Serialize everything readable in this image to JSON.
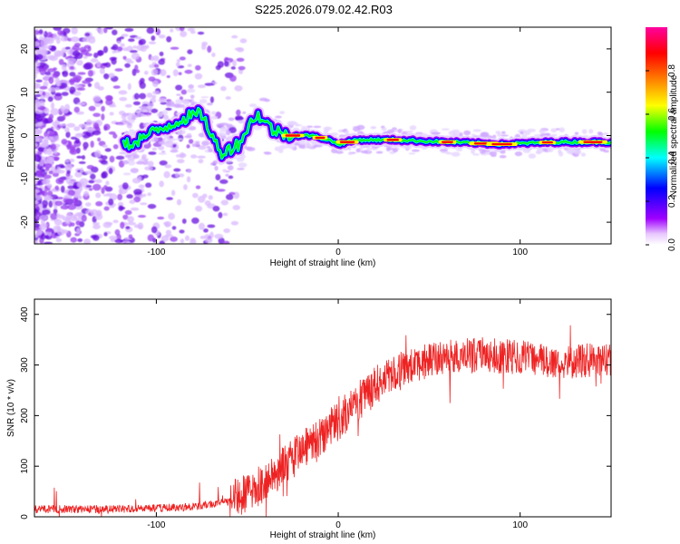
{
  "title": "S225.2026.079.02.42.R03",
  "chart_data": [
    {
      "type": "heatmap",
      "name": "spectrogram",
      "xlabel": "Height of straight line (km)",
      "ylabel": "Frequency (Hz)",
      "xlim": [
        -167,
        150
      ],
      "ylim": [
        -25,
        25
      ],
      "xticks": [
        -100,
        0,
        100
      ],
      "yticks": [
        -20,
        -10,
        0,
        10,
        20
      ],
      "colorbar": {
        "label": "Normalized spectral amplitude",
        "range": [
          0,
          1
        ],
        "ticks": [
          "0.0",
          "0.2",
          "0.4",
          "0.6",
          "0.8"
        ],
        "colors": [
          "#ffffff",
          "#a000ff",
          "#0000ff",
          "#00ffff",
          "#00ff00",
          "#ffff00",
          "#ff8000",
          "#ff0000",
          "#ff00a0"
        ]
      },
      "ridge": {
        "x": [
          -115,
          -105,
          -95,
          -85,
          -75,
          -65,
          -55,
          -45,
          -35,
          -25,
          -15,
          -5,
          0,
          10,
          30,
          60,
          90,
          120,
          150
        ],
        "y": [
          -2,
          0,
          2,
          4,
          5,
          -4,
          -2,
          5,
          1,
          0,
          0,
          -1,
          -2,
          -1,
          -1,
          -1.5,
          -2,
          -1.5,
          -1.5
        ],
        "peak_x": [
          -25,
          -10,
          5,
          30,
          60,
          80,
          90,
          115,
          140
        ]
      }
    },
    {
      "type": "line",
      "name": "snr",
      "xlabel": "Height of straight line (km)",
      "ylabel": "SNR (10 * v/v)",
      "xlim": [
        -167,
        150
      ],
      "ylim": [
        0,
        430
      ],
      "xticks": [
        -100,
        0,
        100
      ],
      "yticks": [
        0,
        100,
        200,
        300,
        400
      ],
      "color": "#ee2222",
      "trend": {
        "x": [
          -167,
          -120,
          -80,
          -60,
          -50,
          -40,
          -30,
          -20,
          -10,
          0,
          10,
          20,
          30,
          40,
          60,
          80,
          100,
          120,
          150
        ],
        "y": [
          15,
          15,
          20,
          30,
          45,
          70,
          100,
          130,
          160,
          190,
          225,
          255,
          285,
          300,
          315,
          320,
          315,
          305,
          310
        ]
      }
    }
  ]
}
